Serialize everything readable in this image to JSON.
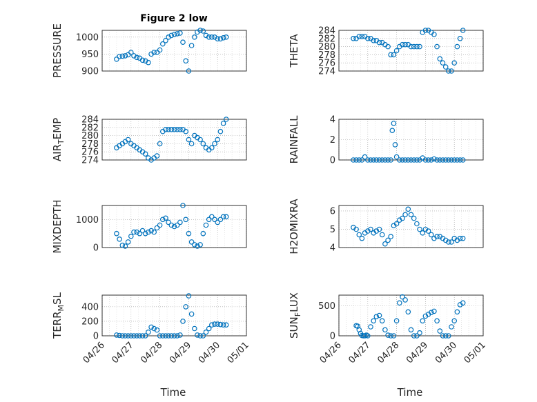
{
  "figure": {
    "title": "Figure 2 low",
    "xlabel": "Time"
  },
  "colors": {
    "marker": "#0072bd",
    "axes": "#262626",
    "grid": "#a0a0a0"
  },
  "chart_data": [
    {
      "type": "scatter",
      "title": "Figure 2 low",
      "ylabel": "PRESSURE",
      "ylim": [
        900,
        1020
      ],
      "yticks": [
        900,
        950,
        1000
      ],
      "xlim": [
        0,
        5
      ],
      "xticks": [
        0,
        1,
        2,
        3,
        4,
        5
      ],
      "xticklabels": [
        "04/26",
        "04/27",
        "04/28",
        "04/29",
        "04/30",
        "05/01"
      ],
      "show_xticklabels": false,
      "grid": true,
      "x": [
        0.5,
        0.6,
        0.7,
        0.8,
        0.9,
        1.0,
        1.1,
        1.2,
        1.3,
        1.4,
        1.5,
        1.6,
        1.7,
        1.8,
        1.9,
        2.0,
        2.1,
        2.2,
        2.3,
        2.4,
        2.5,
        2.6,
        2.7,
        2.8,
        2.9,
        3.0,
        3.1,
        3.2,
        3.3,
        3.4,
        3.5,
        3.6,
        3.7,
        3.8,
        3.9,
        4.0,
        4.1,
        4.2,
        4.3
      ],
      "y": [
        935,
        943,
        944,
        945,
        948,
        955,
        945,
        940,
        938,
        932,
        930,
        925,
        950,
        955,
        955,
        962,
        980,
        990,
        1000,
        1005,
        1008,
        1010,
        1012,
        985,
        930,
        900,
        975,
        1000,
        1015,
        1020,
        1018,
        1005,
        1000,
        1000,
        1000,
        995,
        995,
        998,
        1000
      ]
    },
    {
      "type": "scatter",
      "ylabel": "THETA",
      "ylim": [
        274,
        284
      ],
      "yticks": [
        274,
        276,
        278,
        280,
        282,
        284
      ],
      "xlim": [
        0,
        5
      ],
      "xticks": [
        0,
        1,
        2,
        3,
        4,
        5
      ],
      "xticklabels": [
        "04/26",
        "04/27",
        "04/28",
        "04/29",
        "04/30",
        "05/01"
      ],
      "show_xticklabels": false,
      "grid": true,
      "x": [
        0.5,
        0.6,
        0.7,
        0.8,
        0.9,
        1.0,
        1.1,
        1.2,
        1.3,
        1.4,
        1.5,
        1.6,
        1.7,
        1.8,
        1.9,
        2.0,
        2.1,
        2.2,
        2.3,
        2.4,
        2.5,
        2.6,
        2.7,
        2.8,
        2.9,
        3.0,
        3.1,
        3.2,
        3.3,
        3.4,
        3.5,
        3.6,
        3.7,
        3.8,
        3.9,
        4.0,
        4.1,
        4.2,
        4.3
      ],
      "y": [
        282,
        282,
        282.5,
        282.5,
        282.5,
        282,
        282,
        281.5,
        281.5,
        281,
        281,
        280.5,
        280,
        278,
        278,
        279,
        280,
        280.5,
        280.5,
        280.5,
        280,
        280,
        280,
        280,
        283.5,
        284,
        284,
        283.5,
        283,
        280,
        277,
        276,
        275,
        274,
        274,
        276,
        280,
        282,
        284
      ]
    },
    {
      "type": "scatter",
      "ylabel": "AIR_TEMP",
      "ylim": [
        274,
        284
      ],
      "yticks": [
        274,
        276,
        278,
        280,
        282,
        284
      ],
      "xlim": [
        0,
        5
      ],
      "xticks": [
        0,
        1,
        2,
        3,
        4,
        5
      ],
      "xticklabels": [
        "04/26",
        "04/27",
        "04/28",
        "04/29",
        "04/30",
        "05/01"
      ],
      "show_xticklabels": false,
      "grid": true,
      "x": [
        0.5,
        0.6,
        0.7,
        0.8,
        0.9,
        1.0,
        1.1,
        1.2,
        1.3,
        1.4,
        1.5,
        1.6,
        1.7,
        1.8,
        1.9,
        2.0,
        2.1,
        2.2,
        2.3,
        2.4,
        2.5,
        2.6,
        2.7,
        2.8,
        2.9,
        3.0,
        3.1,
        3.2,
        3.3,
        3.4,
        3.5,
        3.6,
        3.7,
        3.8,
        3.9,
        4.0,
        4.1,
        4.2,
        4.3
      ],
      "y": [
        277,
        277.5,
        278,
        278.5,
        279,
        278,
        277.5,
        277,
        276.5,
        276,
        275.5,
        274.5,
        274,
        274.5,
        275,
        278,
        281,
        281.5,
        281.5,
        281.5,
        281.5,
        281.5,
        281.5,
        281.5,
        281,
        279,
        278,
        280,
        279.5,
        279,
        278,
        277,
        276.5,
        277,
        278,
        279,
        281,
        283,
        284
      ]
    },
    {
      "type": "scatter",
      "ylabel": "RAINFALL",
      "ylim": [
        0,
        4
      ],
      "yticks": [
        0,
        2,
        4
      ],
      "xlim": [
        0,
        5
      ],
      "xticks": [
        0,
        1,
        2,
        3,
        4,
        5
      ],
      "xticklabels": [
        "04/26",
        "04/27",
        "04/28",
        "04/29",
        "04/30",
        "05/01"
      ],
      "show_xticklabels": false,
      "grid": true,
      "x": [
        0.5,
        0.6,
        0.7,
        0.8,
        0.9,
        1.0,
        1.1,
        1.2,
        1.3,
        1.4,
        1.5,
        1.6,
        1.7,
        1.8,
        1.85,
        1.9,
        1.95,
        2.0,
        2.1,
        2.2,
        2.3,
        2.4,
        2.5,
        2.6,
        2.7,
        2.8,
        2.9,
        3.0,
        3.1,
        3.2,
        3.3,
        3.4,
        3.5,
        3.6,
        3.7,
        3.8,
        3.9,
        4.0,
        4.1,
        4.2,
        4.3
      ],
      "y": [
        0,
        0,
        0,
        0,
        0.3,
        0,
        0,
        0,
        0,
        0,
        0,
        0,
        0,
        0,
        2.9,
        3.6,
        1.5,
        0.3,
        0,
        0,
        0,
        0,
        0,
        0,
        0,
        0,
        0.2,
        0,
        0,
        0,
        0.1,
        0,
        0,
        0,
        0,
        0,
        0,
        0,
        0,
        0,
        0
      ]
    },
    {
      "type": "scatter",
      "ylabel": "MIXDEPTH",
      "ylim": [
        0,
        1500
      ],
      "yticks": [
        0,
        1000
      ],
      "xlim": [
        0,
        5
      ],
      "xticks": [
        0,
        1,
        2,
        3,
        4,
        5
      ],
      "xticklabels": [
        "04/26",
        "04/27",
        "04/28",
        "04/29",
        "04/30",
        "05/01"
      ],
      "show_xticklabels": false,
      "grid": true,
      "x": [
        0.5,
        0.6,
        0.7,
        0.8,
        0.9,
        1.0,
        1.1,
        1.2,
        1.3,
        1.4,
        1.5,
        1.6,
        1.7,
        1.8,
        1.9,
        2.0,
        2.1,
        2.2,
        2.3,
        2.4,
        2.5,
        2.6,
        2.7,
        2.8,
        2.9,
        3.0,
        3.1,
        3.2,
        3.3,
        3.4,
        3.5,
        3.6,
        3.7,
        3.8,
        3.9,
        4.0,
        4.1,
        4.2,
        4.3
      ],
      "y": [
        500,
        300,
        80,
        50,
        200,
        400,
        550,
        550,
        500,
        600,
        500,
        550,
        600,
        550,
        700,
        800,
        1000,
        1050,
        900,
        800,
        750,
        800,
        900,
        1500,
        1000,
        500,
        200,
        100,
        50,
        100,
        500,
        800,
        1000,
        1100,
        1000,
        900,
        1000,
        1100,
        1100
      ]
    },
    {
      "type": "scatter",
      "ylabel": "H2OMIXRA",
      "ylim": [
        4,
        6.3
      ],
      "yticks": [
        4,
        5,
        6
      ],
      "xlim": [
        0,
        5
      ],
      "xticks": [
        0,
        1,
        2,
        3,
        4,
        5
      ],
      "xticklabels": [
        "04/26",
        "04/27",
        "04/28",
        "04/29",
        "04/30",
        "05/01"
      ],
      "show_xticklabels": false,
      "grid": true,
      "x": [
        0.5,
        0.6,
        0.7,
        0.8,
        0.9,
        1.0,
        1.1,
        1.2,
        1.3,
        1.4,
        1.5,
        1.6,
        1.7,
        1.8,
        1.9,
        2.0,
        2.1,
        2.2,
        2.3,
        2.4,
        2.5,
        2.6,
        2.7,
        2.8,
        2.9,
        3.0,
        3.1,
        3.2,
        3.3,
        3.4,
        3.5,
        3.6,
        3.7,
        3.8,
        3.9,
        4.0,
        4.1,
        4.2,
        4.3
      ],
      "y": [
        5.1,
        5.0,
        4.7,
        4.5,
        4.8,
        4.9,
        5.0,
        4.8,
        4.9,
        5.0,
        4.7,
        4.2,
        4.4,
        4.6,
        5.2,
        5.3,
        5.5,
        5.6,
        5.8,
        6.1,
        5.8,
        5.6,
        5.3,
        5.0,
        4.8,
        5.0,
        4.9,
        4.7,
        4.5,
        4.6,
        4.6,
        4.5,
        4.4,
        4.3,
        4.3,
        4.5,
        4.4,
        4.5,
        4.5
      ]
    },
    {
      "type": "scatter",
      "ylabel": "TERR_MSL",
      "ylim": [
        0,
        560
      ],
      "yticks": [
        0,
        200,
        400
      ],
      "xlim": [
        0,
        5
      ],
      "xticks": [
        0,
        1,
        2,
        3,
        4,
        5
      ],
      "xticklabels": [
        "04/26",
        "04/27",
        "04/28",
        "04/29",
        "04/30",
        "05/01"
      ],
      "show_xticklabels": true,
      "grid": true,
      "x": [
        0.5,
        0.6,
        0.7,
        0.8,
        0.9,
        1.0,
        1.1,
        1.2,
        1.3,
        1.4,
        1.5,
        1.6,
        1.7,
        1.8,
        1.9,
        2.0,
        2.1,
        2.2,
        2.3,
        2.4,
        2.5,
        2.6,
        2.7,
        2.8,
        2.9,
        3.0,
        3.1,
        3.2,
        3.3,
        3.4,
        3.5,
        3.6,
        3.7,
        3.8,
        3.9,
        4.0,
        4.1,
        4.2,
        4.3
      ],
      "y": [
        10,
        5,
        0,
        0,
        0,
        0,
        0,
        0,
        0,
        0,
        0,
        50,
        120,
        100,
        80,
        0,
        0,
        0,
        0,
        0,
        0,
        0,
        10,
        200,
        400,
        550,
        300,
        100,
        10,
        0,
        0,
        50,
        100,
        150,
        160,
        160,
        155,
        150,
        150
      ]
    },
    {
      "type": "scatter",
      "ylabel": "SUN_FLUX",
      "ylim": [
        0,
        680
      ],
      "yticks": [
        0,
        500
      ],
      "xlim": [
        0,
        5
      ],
      "xticks": [
        0,
        1,
        2,
        3,
        4,
        5
      ],
      "xticklabels": [
        "04/26",
        "04/27",
        "04/28",
        "04/29",
        "04/30",
        "05/01"
      ],
      "show_xticklabels": true,
      "grid": true,
      "x": [
        0.6,
        0.65,
        0.7,
        0.75,
        0.8,
        0.85,
        0.9,
        0.95,
        1.0,
        1.1,
        1.2,
        1.3,
        1.4,
        1.5,
        1.6,
        1.7,
        1.8,
        1.9,
        2.0,
        2.1,
        2.2,
        2.3,
        2.4,
        2.5,
        2.6,
        2.7,
        2.8,
        2.9,
        3.0,
        3.1,
        3.2,
        3.3,
        3.4,
        3.5,
        3.6,
        3.7,
        3.8,
        3.9,
        4.0,
        4.1,
        4.2,
        4.3
      ],
      "y": [
        170,
        160,
        100,
        40,
        5,
        0,
        0,
        10,
        0,
        150,
        250,
        320,
        340,
        250,
        100,
        10,
        0,
        0,
        250,
        550,
        650,
        600,
        400,
        100,
        0,
        0,
        50,
        250,
        330,
        360,
        390,
        410,
        250,
        80,
        0,
        0,
        0,
        150,
        250,
        400,
        520,
        550
      ]
    }
  ]
}
